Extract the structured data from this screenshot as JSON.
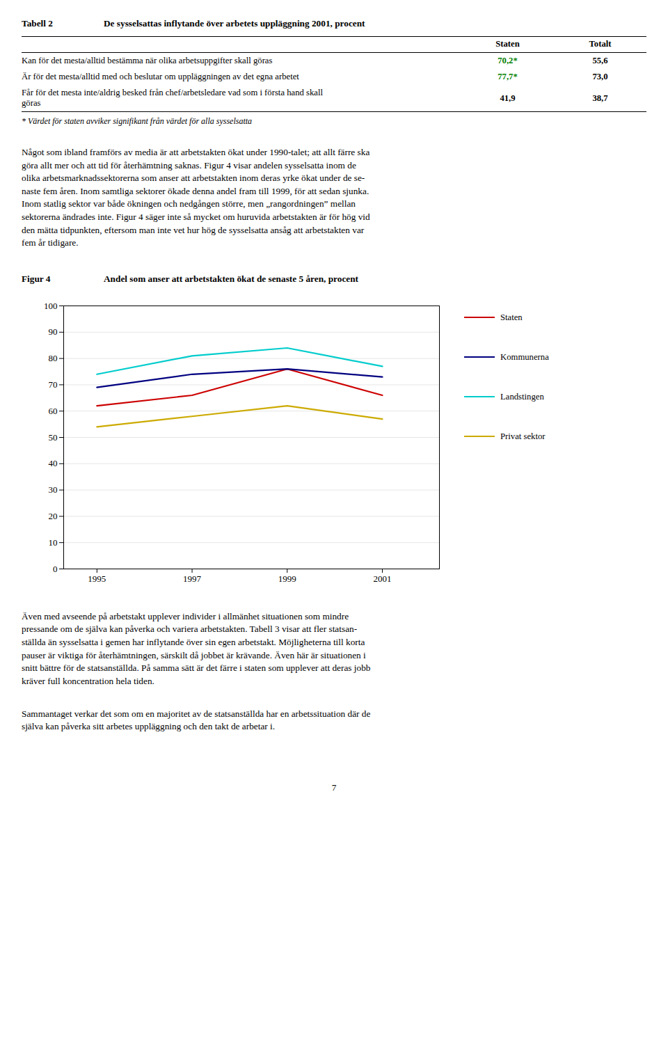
{
  "chart_data": {
    "type": "line",
    "figure_label": "Figur 4",
    "title": "Andel som anser att arbetstakten ökat de senaste 5 åren, procent",
    "x": [
      1995,
      1997,
      1999,
      2001
    ],
    "xlim": [
      1994.3,
      2002.2
    ],
    "xticks": [
      1995,
      1997,
      1999,
      2001
    ],
    "ylim": [
      0,
      100
    ],
    "yticks": [
      0,
      10,
      20,
      30,
      40,
      50,
      60,
      70,
      80,
      90,
      100
    ],
    "grid": true,
    "legend": "right",
    "series": [
      {
        "name": "Staten",
        "color": "#cc0000",
        "values": [
          62,
          66,
          76,
          66
        ]
      },
      {
        "name": "Kommunerna",
        "color": "#000080",
        "values": [
          69,
          74,
          76,
          73
        ]
      },
      {
        "name": "Landstingen",
        "color": "#00cccc",
        "values": [
          74,
          81,
          84,
          77
        ]
      },
      {
        "name": "Privat sektor",
        "color": "#ccaa00",
        "values": [
          54,
          58,
          62,
          57
        ]
      }
    ]
  },
  "table": {
    "title": "Tabell 2",
    "description": "De sysselsattas inflytande över arbetets uppläggning 2001, procent",
    "columns": [
      "Staten",
      "Totalt"
    ],
    "rows": [
      {
        "text": [
          "Kan för det mesta/alltid bestämma när olika arbetsuppgifter skall göras"
        ],
        "values": [
          "70,2*",
          "55,6"
        ],
        "colors": [
          "#008000",
          "#000000"
        ]
      },
      {
        "text": [
          "Är för det mesta/alltid med och beslutar om uppläggningen av det egna arbetet"
        ],
        "values": [
          "77,7*",
          "73,0"
        ],
        "colors": [
          "#008000",
          "#000000"
        ]
      },
      {
        "text": [
          "Får för det mesta inte/aldrig besked från chef/arbetsledare vad som i första hand skall",
          "göras"
        ],
        "values": [
          "41,9",
          "38,7"
        ],
        "colors": [
          "#000000",
          "#000000"
        ]
      }
    ],
    "footnote": "* Värdet för staten avviker signifikant från värdet för alla sysselsatta"
  },
  "paragraphs_above_chart": [
    [
      "Något som ibland framförs av media är att arbetstakten ökat under 1990-talet; att allt färre ska",
      "göra allt mer och att tid för återhämtning saknas. Figur 4 visar andelen sysselsatta inom de",
      "olika arbetsmarknadssektorerna som anser att arbetstakten inom deras yrke ökat under de se-",
      "naste fem åren. Inom samtliga sektorer ökade denna andel fram till 1999, för att sedan sjunka.",
      "Inom statlig sektor var både ökningen och nedgången större, men „rangordningen” mellan",
      "sektorerna ändrades inte. Figur 4 säger inte så mycket om huruvida arbetstakten är för hög vid",
      "den mätta tidpunkten, eftersom man inte vet hur hög de sysselsatta ansåg att arbetstakten var",
      "fem år tidigare."
    ]
  ],
  "paragraphs_below_chart": [
    [
      "Även med avseende på arbetstakt upplever individer i allmänhet situationen som mindre",
      "pressande om de själva kan påverka och variera arbetstakten. Tabell 3 visar att fler statsan-",
      "ställda än sysselsatta i gemen har inflytande över sin egen arbetstakt. Möjligheterna till korta",
      "pauser är viktiga för återhämtningen, särskilt då jobbet är krävande. Även här är situationen i",
      "snitt bättre för de statsanställda. På samma sätt är det färre i staten som upplever att deras jobb",
      "kräver full koncentration hela tiden."
    ],
    [
      "Sammantaget verkar det som om en majoritet av de statsanställda har en arbetssituation där de",
      "själva kan påverka sitt arbetes uppläggning och den takt de arbetar i."
    ]
  ],
  "page_number": "7"
}
